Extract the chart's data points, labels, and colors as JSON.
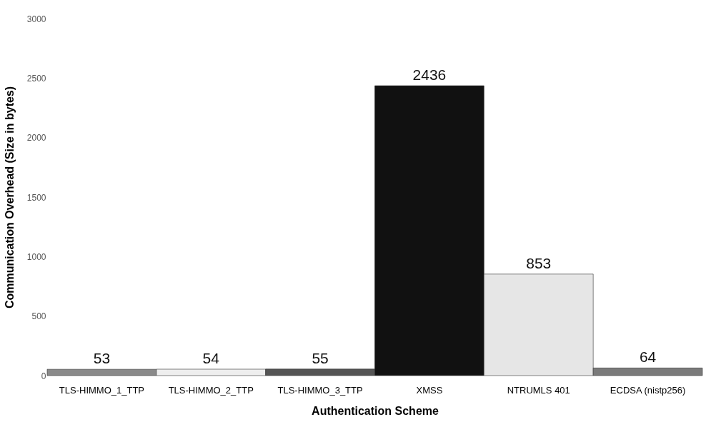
{
  "chart_data": {
    "type": "bar",
    "xlabel": "Authentication Scheme",
    "ylabel": "Communication Overhead (Size in bytes)",
    "categories": [
      "TLS-HIMMO_1_TTP",
      "TLS-HIMMO_2_TTP",
      "TLS-HIMMO_3_TTP",
      "XMSS",
      "NTRUMLS 401",
      "ECDSA (nistp256)"
    ],
    "values": [
      53,
      54,
      55,
      2436,
      853,
      64
    ],
    "colors": [
      "#8a8a8a",
      "#eeeeee",
      "#555555",
      "#111111",
      "#e6e6e6",
      "#7a7a7a"
    ],
    "ylim": [
      0,
      3000
    ],
    "yticks": [
      0,
      500,
      1000,
      1500,
      2000,
      2500,
      3000
    ],
    "data_labels": true,
    "grid": false
  }
}
